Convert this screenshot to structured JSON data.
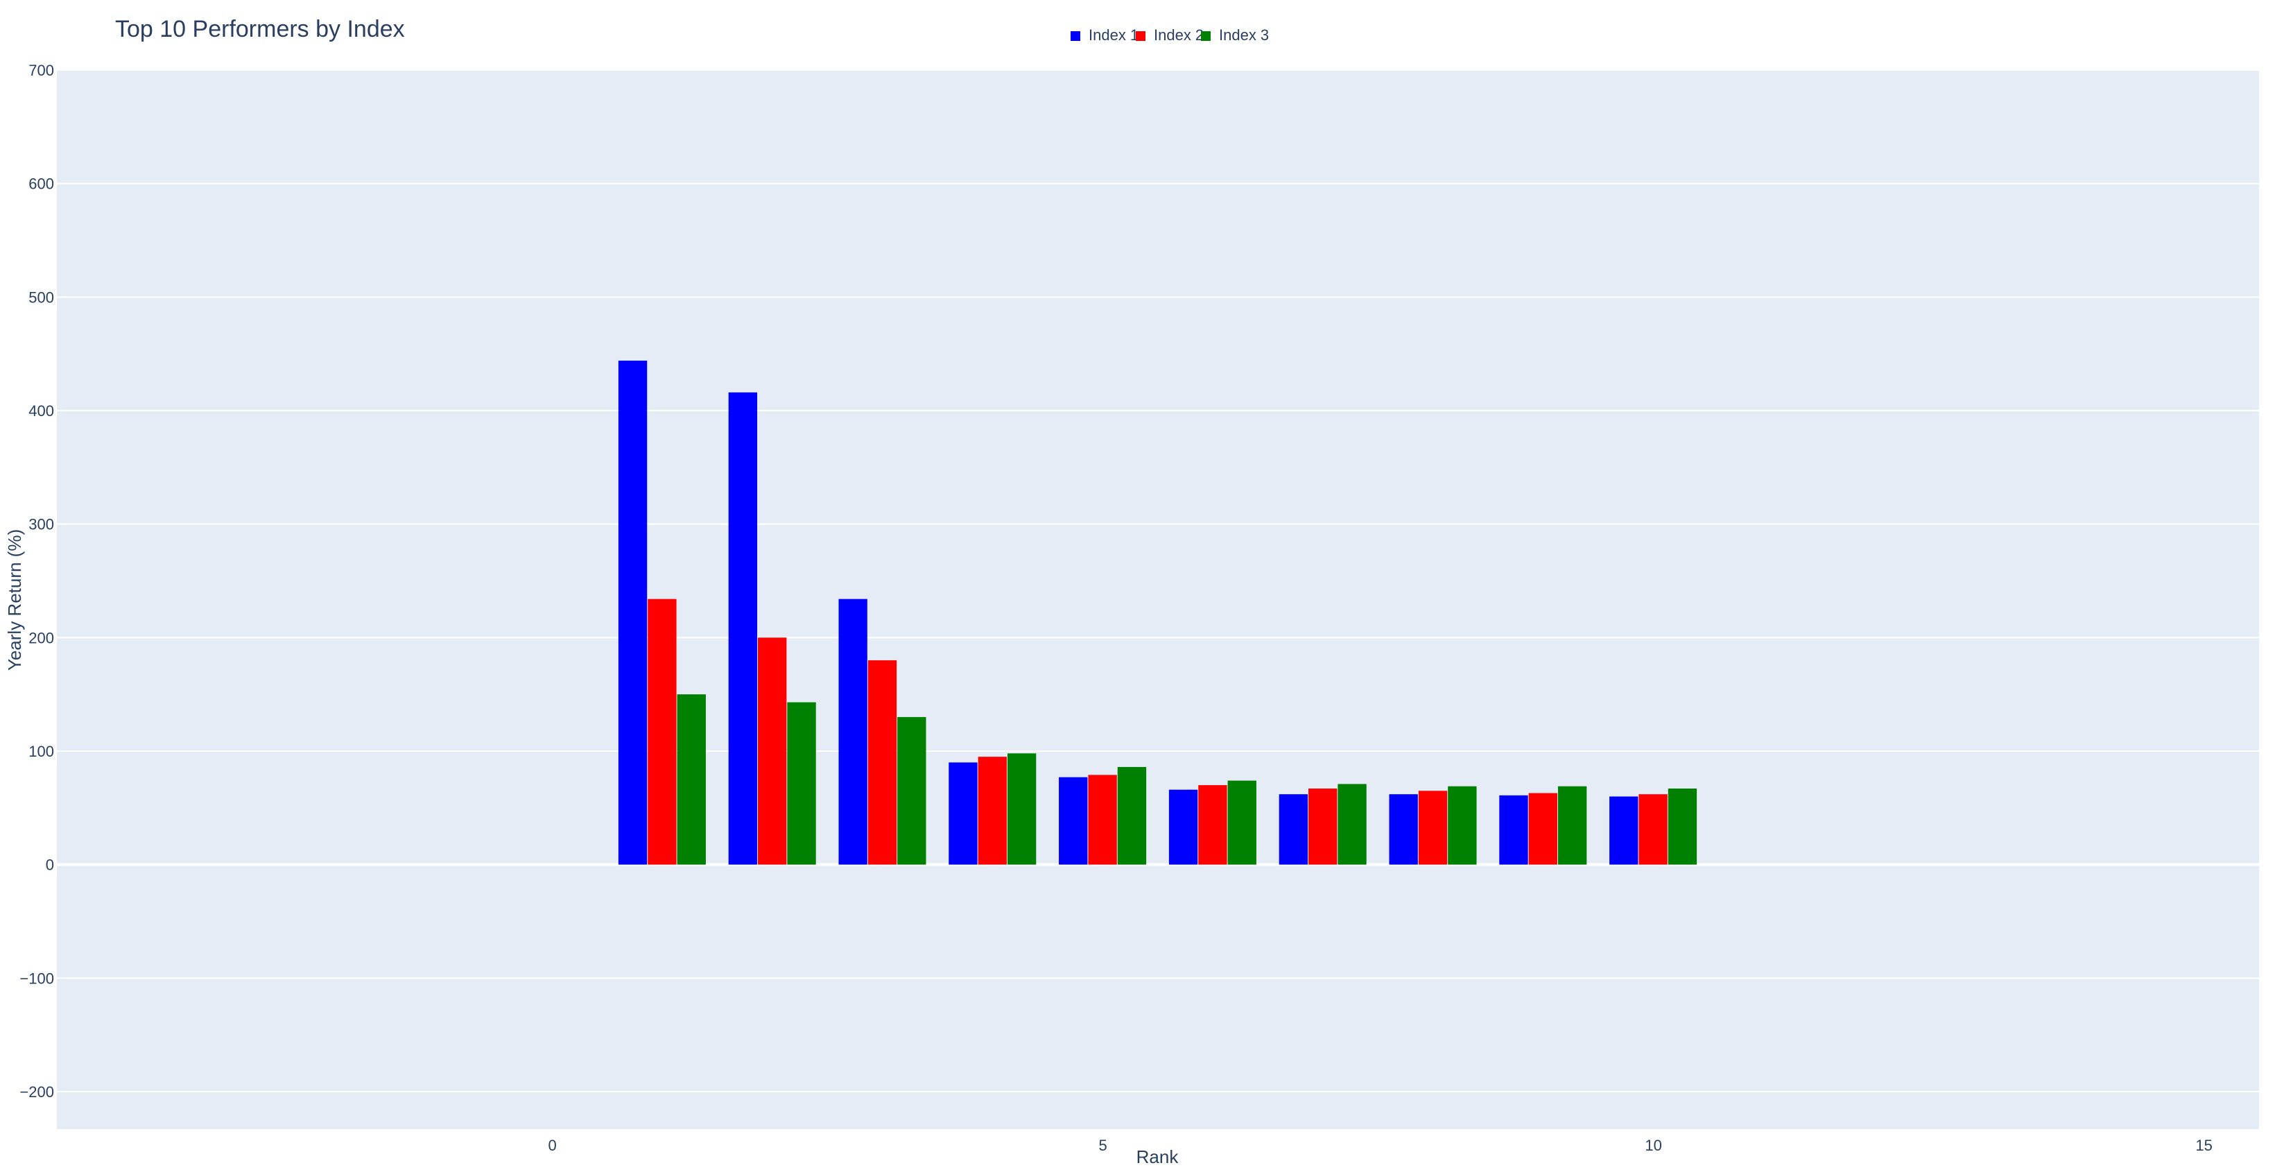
{
  "chart_data": {
    "type": "bar",
    "title": "Top 10 Performers by Index",
    "xlabel": "Rank",
    "ylabel": "Yearly Return (%)",
    "x": [
      1,
      2,
      3,
      4,
      5,
      6,
      7,
      8,
      9,
      10
    ],
    "series": [
      {
        "name": "Index 1",
        "color": "#0000ff",
        "values": [
          444,
          416,
          234,
          90,
          77,
          66,
          62,
          62,
          61,
          60
        ]
      },
      {
        "name": "Index 2",
        "color": "#ff0000",
        "values": [
          234,
          200,
          180,
          95,
          79,
          70,
          67,
          65,
          63,
          62
        ]
      },
      {
        "name": "Index 3",
        "color": "#008000",
        "values": [
          150,
          143,
          130,
          98,
          86,
          74,
          71,
          69,
          69,
          67
        ]
      }
    ],
    "xlim": [
      -4.5,
      15.5
    ],
    "ylim": [
      -233,
      700
    ],
    "xticks": [
      0,
      5,
      10,
      15
    ],
    "yticks": [
      -200,
      -100,
      0,
      100,
      200,
      300,
      400,
      500,
      600,
      700
    ],
    "xtick_labels": [
      "0",
      "5",
      "10",
      "15"
    ],
    "ytick_labels": [
      "−200",
      "−100",
      "0",
      "100",
      "200",
      "300",
      "400",
      "500",
      "600",
      "700"
    ],
    "grid": true,
    "legend_position": "top-center",
    "plot_bgcolor": "#e5ecf6"
  }
}
